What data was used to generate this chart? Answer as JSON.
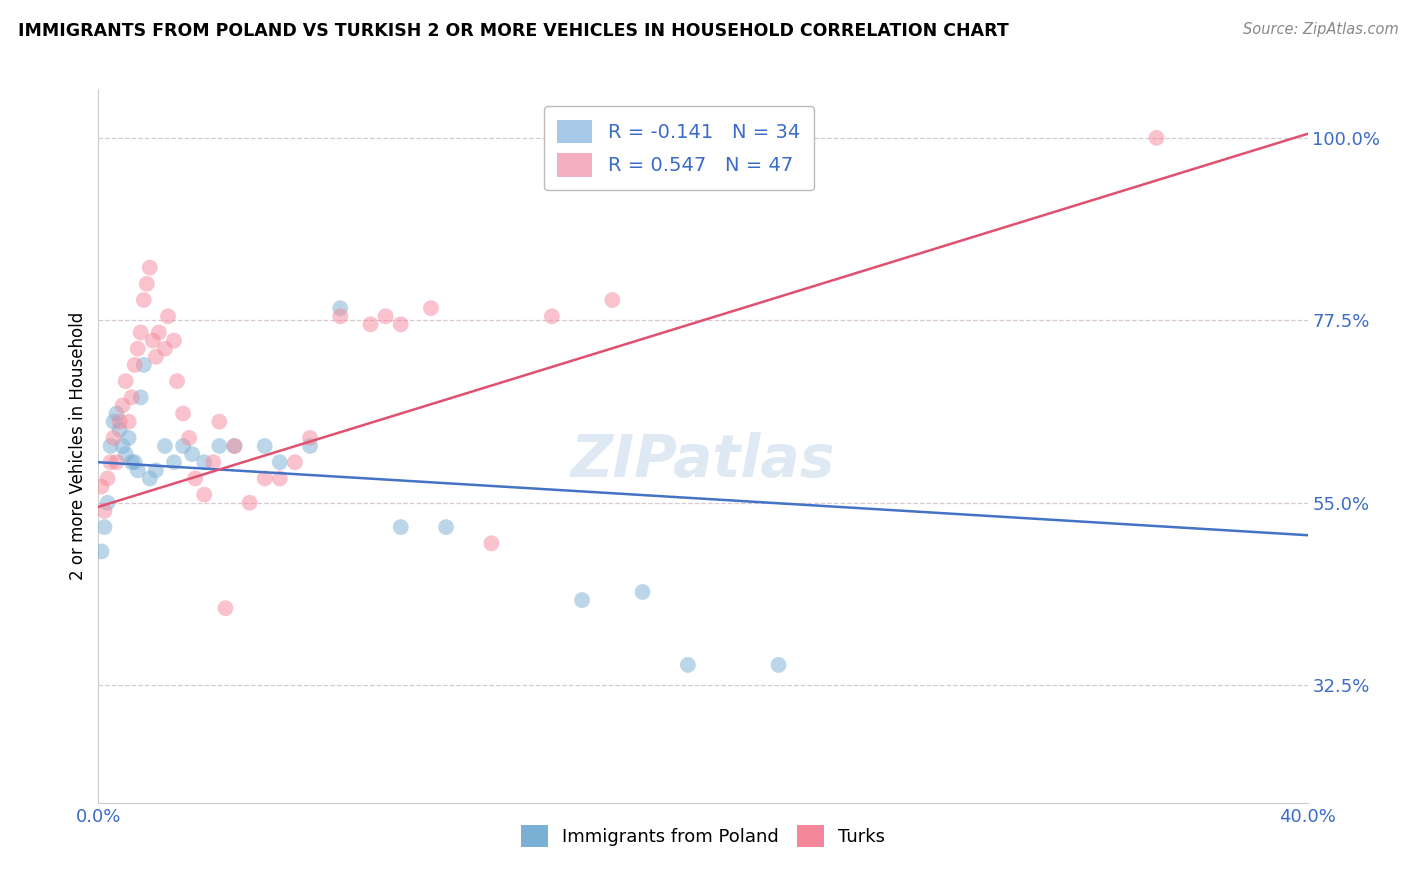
{
  "title": "IMMIGRANTS FROM POLAND VS TURKISH 2 OR MORE VEHICLES IN HOUSEHOLD CORRELATION CHART",
  "source": "Source: ZipAtlas.com",
  "ylabel": "2 or more Vehicles in Household",
  "ytick_labels": [
    "100.0%",
    "77.5%",
    "55.0%",
    "32.5%"
  ],
  "ytick_values": [
    1.0,
    0.775,
    0.55,
    0.325
  ],
  "xlim": [
    0.0,
    0.4
  ],
  "ylim": [
    0.18,
    1.06
  ],
  "poland_color": "#7bafd4",
  "turks_color": "#f4879a",
  "poland_line_color": "#4472c4",
  "turks_line_color": "#e05070",
  "legend_label_poland": "Immigrants from Poland",
  "legend_label_turks": "Turks",
  "poland_line_x0": 0.0,
  "poland_line_y0": 0.6,
  "poland_line_x1": 0.4,
  "poland_line_y1": 0.51,
  "turks_line_x0": 0.0,
  "turks_line_y0": 0.545,
  "turks_line_x1": 0.4,
  "turks_line_y1": 1.005,
  "poland_points": [
    [
      0.001,
      0.49
    ],
    [
      0.002,
      0.52
    ],
    [
      0.003,
      0.55
    ],
    [
      0.004,
      0.62
    ],
    [
      0.005,
      0.65
    ],
    [
      0.006,
      0.66
    ],
    [
      0.007,
      0.64
    ],
    [
      0.008,
      0.62
    ],
    [
      0.009,
      0.61
    ],
    [
      0.01,
      0.63
    ],
    [
      0.011,
      0.6
    ],
    [
      0.012,
      0.6
    ],
    [
      0.013,
      0.59
    ],
    [
      0.014,
      0.68
    ],
    [
      0.015,
      0.72
    ],
    [
      0.017,
      0.58
    ],
    [
      0.019,
      0.59
    ],
    [
      0.022,
      0.62
    ],
    [
      0.025,
      0.6
    ],
    [
      0.028,
      0.62
    ],
    [
      0.031,
      0.61
    ],
    [
      0.035,
      0.6
    ],
    [
      0.04,
      0.62
    ],
    [
      0.045,
      0.62
    ],
    [
      0.055,
      0.62
    ],
    [
      0.06,
      0.6
    ],
    [
      0.07,
      0.62
    ],
    [
      0.08,
      0.79
    ],
    [
      0.1,
      0.52
    ],
    [
      0.115,
      0.52
    ],
    [
      0.16,
      0.43
    ],
    [
      0.18,
      0.44
    ],
    [
      0.195,
      0.35
    ],
    [
      0.225,
      0.35
    ]
  ],
  "turks_points": [
    [
      0.001,
      0.57
    ],
    [
      0.002,
      0.54
    ],
    [
      0.003,
      0.58
    ],
    [
      0.004,
      0.6
    ],
    [
      0.005,
      0.63
    ],
    [
      0.006,
      0.6
    ],
    [
      0.007,
      0.65
    ],
    [
      0.008,
      0.67
    ],
    [
      0.009,
      0.7
    ],
    [
      0.01,
      0.65
    ],
    [
      0.011,
      0.68
    ],
    [
      0.012,
      0.72
    ],
    [
      0.013,
      0.74
    ],
    [
      0.014,
      0.76
    ],
    [
      0.015,
      0.8
    ],
    [
      0.016,
      0.82
    ],
    [
      0.017,
      0.84
    ],
    [
      0.018,
      0.75
    ],
    [
      0.019,
      0.73
    ],
    [
      0.02,
      0.76
    ],
    [
      0.022,
      0.74
    ],
    [
      0.023,
      0.78
    ],
    [
      0.025,
      0.75
    ],
    [
      0.026,
      0.7
    ],
    [
      0.028,
      0.66
    ],
    [
      0.03,
      0.63
    ],
    [
      0.032,
      0.58
    ],
    [
      0.035,
      0.56
    ],
    [
      0.038,
      0.6
    ],
    [
      0.04,
      0.65
    ],
    [
      0.042,
      0.42
    ],
    [
      0.045,
      0.62
    ],
    [
      0.05,
      0.55
    ],
    [
      0.055,
      0.58
    ],
    [
      0.06,
      0.58
    ],
    [
      0.065,
      0.6
    ],
    [
      0.07,
      0.63
    ],
    [
      0.08,
      0.78
    ],
    [
      0.09,
      0.77
    ],
    [
      0.095,
      0.78
    ],
    [
      0.1,
      0.77
    ],
    [
      0.11,
      0.79
    ],
    [
      0.13,
      0.5
    ],
    [
      0.15,
      0.78
    ],
    [
      0.17,
      0.8
    ],
    [
      0.2,
      0.98
    ],
    [
      0.35,
      1.0
    ]
  ]
}
